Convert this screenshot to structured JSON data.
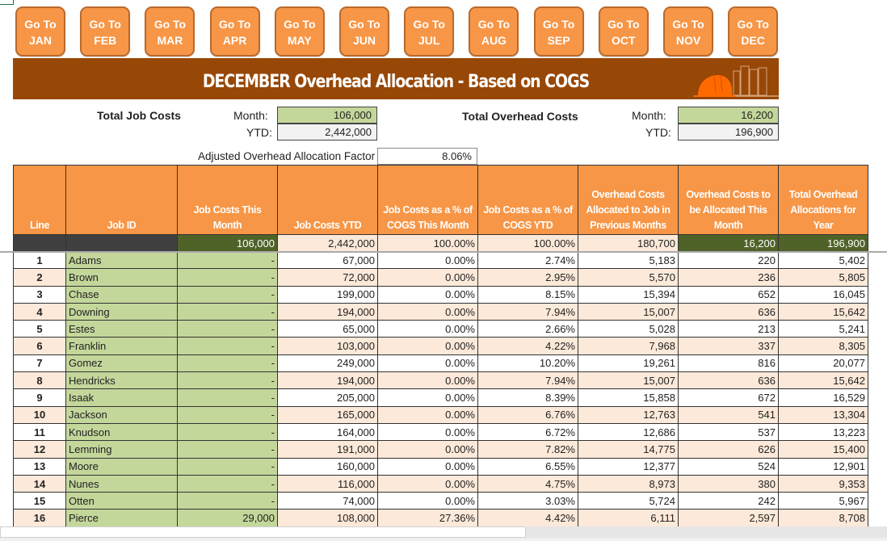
{
  "nav": {
    "months": [
      {
        "line1": "Go To",
        "line2": "JAN"
      },
      {
        "line1": "Go To",
        "line2": "FEB"
      },
      {
        "line1": "Go To",
        "line2": "MAR"
      },
      {
        "line1": "Go To",
        "line2": "APR"
      },
      {
        "line1": "Go To",
        "line2": "MAY"
      },
      {
        "line1": "Go To",
        "line2": "JUN"
      },
      {
        "line1": "Go To",
        "line2": "JUL"
      },
      {
        "line1": "Go To",
        "line2": "AUG"
      },
      {
        "line1": "Go To",
        "line2": "SEP"
      },
      {
        "line1": "Go To",
        "line2": "OCT"
      },
      {
        "line1": "Go To",
        "line2": "NOV"
      },
      {
        "line1": "Go To",
        "line2": "DEC"
      }
    ]
  },
  "banner": {
    "title": "DECEMBER Overhead Allocation - Based on COGS",
    "icon": "hard-hat-and-binders-icon"
  },
  "summary": {
    "job_costs": {
      "title": "Total Job Costs",
      "month_label": "Month:",
      "month_value": "106,000",
      "ytd_label": "YTD:",
      "ytd_value": "2,442,000"
    },
    "overhead_costs": {
      "title": "Total Overhead Costs",
      "month_label": "Month:",
      "month_value": "16,200",
      "ytd_label": "YTD:",
      "ytd_value": "196,900"
    },
    "factor": {
      "label": "Adjusted Overhead Allocation Factor",
      "value": "8.06%"
    }
  },
  "table": {
    "headers": [
      "Line",
      "Job ID",
      "Job Costs This Month",
      "Job Costs YTD",
      "Job Costs as a % of COGS This Month",
      "Job Costs as a % of COGS YTD",
      "Overhead Costs Allocated to Job in Previous Months",
      "Overhead Costs to be Allocated This Month",
      "Total Overhead Allocations for Year"
    ],
    "totals": [
      "",
      "",
      "106,000",
      "2,442,000",
      "100.00%",
      "100.00%",
      "180,700",
      "16,200",
      "196,900"
    ],
    "rows": [
      [
        "1",
        "Adams",
        "-",
        "67,000",
        "0.00%",
        "2.74%",
        "5,183",
        "220",
        "5,402"
      ],
      [
        "2",
        "Brown",
        "-",
        "72,000",
        "0.00%",
        "2.95%",
        "5,570",
        "236",
        "5,805"
      ],
      [
        "3",
        "Chase",
        "-",
        "199,000",
        "0.00%",
        "8.15%",
        "15,394",
        "652",
        "16,045"
      ],
      [
        "4",
        "Downing",
        "-",
        "194,000",
        "0.00%",
        "7.94%",
        "15,007",
        "636",
        "15,642"
      ],
      [
        "5",
        "Estes",
        "-",
        "65,000",
        "0.00%",
        "2.66%",
        "5,028",
        "213",
        "5,241"
      ],
      [
        "6",
        "Franklin",
        "-",
        "103,000",
        "0.00%",
        "4.22%",
        "7,968",
        "337",
        "8,305"
      ],
      [
        "7",
        "Gomez",
        "-",
        "249,000",
        "0.00%",
        "10.20%",
        "19,261",
        "816",
        "20,077"
      ],
      [
        "8",
        "Hendricks",
        "-",
        "194,000",
        "0.00%",
        "7.94%",
        "15,007",
        "636",
        "15,642"
      ],
      [
        "9",
        "Isaak",
        "-",
        "205,000",
        "0.00%",
        "8.39%",
        "15,858",
        "672",
        "16,529"
      ],
      [
        "10",
        "Jackson",
        "-",
        "165,000",
        "0.00%",
        "6.76%",
        "12,763",
        "541",
        "13,304"
      ],
      [
        "11",
        "Knudson",
        "-",
        "164,000",
        "0.00%",
        "6.72%",
        "12,686",
        "537",
        "13,223"
      ],
      [
        "12",
        "Lemming",
        "-",
        "191,000",
        "0.00%",
        "7.82%",
        "14,775",
        "626",
        "15,400"
      ],
      [
        "13",
        "Moore",
        "-",
        "160,000",
        "0.00%",
        "6.55%",
        "12,377",
        "524",
        "12,901"
      ],
      [
        "14",
        "Nunes",
        "-",
        "116,000",
        "0.00%",
        "4.75%",
        "8,973",
        "380",
        "9,353"
      ],
      [
        "15",
        "Otten",
        "-",
        "74,000",
        "0.00%",
        "3.03%",
        "5,724",
        "242",
        "5,967"
      ],
      [
        "16",
        "Pierce",
        "29,000",
        "108,000",
        "27.36%",
        "4.42%",
        "6,111",
        "2,597",
        "8,708"
      ]
    ]
  },
  "colors": {
    "button_orange": "#f79646",
    "banner_brown": "#974706",
    "input_green": "#c4d79b",
    "total_olive": "#4f6228",
    "row_peach": "#fde9d9"
  }
}
